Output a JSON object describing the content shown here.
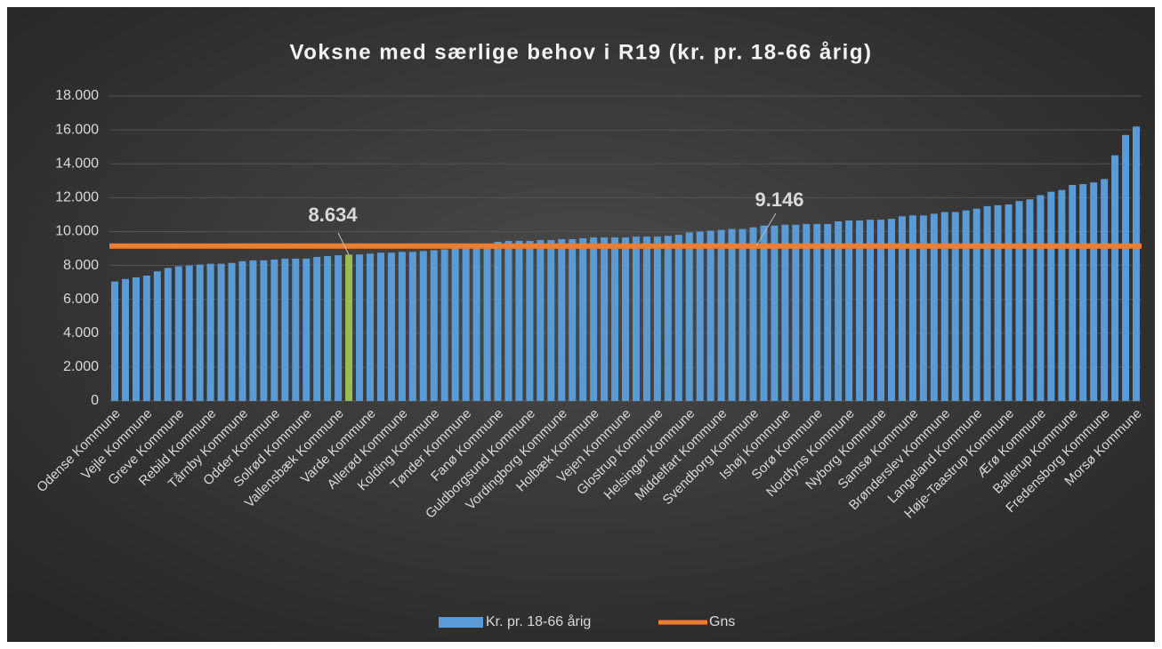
{
  "chart_data": {
    "type": "bar",
    "title": "Voksne med særlige behov i R19 (kr. pr. 18-66 årig)",
    "categories": [
      "Odense Kommune",
      null,
      null,
      "Vejle Kommune",
      null,
      null,
      "Greve Kommune",
      null,
      null,
      "Rebild Kommune",
      null,
      null,
      "Tårnby Kommune",
      null,
      null,
      "Odder Kommune",
      null,
      null,
      "Solrød Kommune",
      null,
      null,
      "Vallensbæk Kommune",
      null,
      null,
      "Varde Kommune",
      null,
      null,
      "Allerød Kommune",
      null,
      null,
      "Kolding Kommune",
      null,
      null,
      "Tønder Kommune",
      null,
      null,
      "Fanø Kommune",
      null,
      null,
      "Guldborgsund Kommune",
      null,
      null,
      "Vordingborg Kommune",
      null,
      null,
      "Holbæk Kommune",
      null,
      null,
      "Vejen Kommune",
      null,
      null,
      "Glostrup Kommune",
      null,
      null,
      "Helsingør Kommune",
      null,
      null,
      "Middelfart Kommune",
      null,
      null,
      "Svendborg Kommune",
      null,
      null,
      "Ishøj Kommune",
      null,
      null,
      "Sorø Kommune",
      null,
      null,
      "Nordfyns Kommune",
      null,
      null,
      "Nyborg Kommune",
      null,
      null,
      "Samsø Kommune",
      null,
      null,
      "Brønderslev Kommune",
      null,
      null,
      "Langeland Kommune",
      null,
      null,
      "Høje-Taastrup Kommune",
      null,
      null,
      "Ærø Kommune",
      null,
      null,
      "Ballerup Kommune",
      null,
      null,
      "Fredensborg Kommune",
      null,
      null,
      "Morsø Kommune"
    ],
    "series": [
      {
        "name": "Kr. pr. 18-66 årig",
        "color": "#5b9bd5",
        "values": [
          7050,
          7200,
          7300,
          7400,
          7650,
          7850,
          7950,
          8000,
          8050,
          8100,
          8100,
          8150,
          8250,
          8300,
          8300,
          8350,
          8400,
          8400,
          8400,
          8500,
          8550,
          8600,
          8634,
          8650,
          8700,
          8750,
          8750,
          8800,
          8800,
          8850,
          8900,
          8950,
          9000,
          9050,
          9100,
          9250,
          9400,
          9450,
          9450,
          9450,
          9500,
          9500,
          9550,
          9550,
          9600,
          9650,
          9650,
          9650,
          9650,
          9700,
          9700,
          9700,
          9750,
          9800,
          9950,
          10000,
          10050,
          10100,
          10150,
          10150,
          10250,
          10350,
          10350,
          10400,
          10400,
          10450,
          10450,
          10450,
          10600,
          10650,
          10650,
          10700,
          10700,
          10750,
          10900,
          10950,
          10950,
          11050,
          11150,
          11150,
          11250,
          11350,
          11500,
          11550,
          11600,
          11800,
          11900,
          12150,
          12350,
          12450,
          12750,
          12800,
          12900,
          13100,
          14500,
          15700,
          16200
        ]
      },
      {
        "name": "Gns",
        "color": "#ed7d31",
        "value": 9146,
        "value_label": "9.146"
      }
    ],
    "highlight": {
      "index": 22,
      "label": "8.634",
      "color": "#9bbb59"
    },
    "ylim": [
      0,
      18000
    ],
    "yticks": [
      {
        "value": 0,
        "label": "0"
      },
      {
        "value": 2000,
        "label": "2.000"
      },
      {
        "value": 4000,
        "label": "4.000"
      },
      {
        "value": 6000,
        "label": "6.000"
      },
      {
        "value": 8000,
        "label": "8.000"
      },
      {
        "value": 10000,
        "label": "10.000"
      },
      {
        "value": 12000,
        "label": "12.000"
      },
      {
        "value": 14000,
        "label": "14.000"
      },
      {
        "value": 16000,
        "label": "16.000"
      },
      {
        "value": 18000,
        "label": "18.000"
      }
    ],
    "grid": true,
    "legend": "bottom"
  }
}
